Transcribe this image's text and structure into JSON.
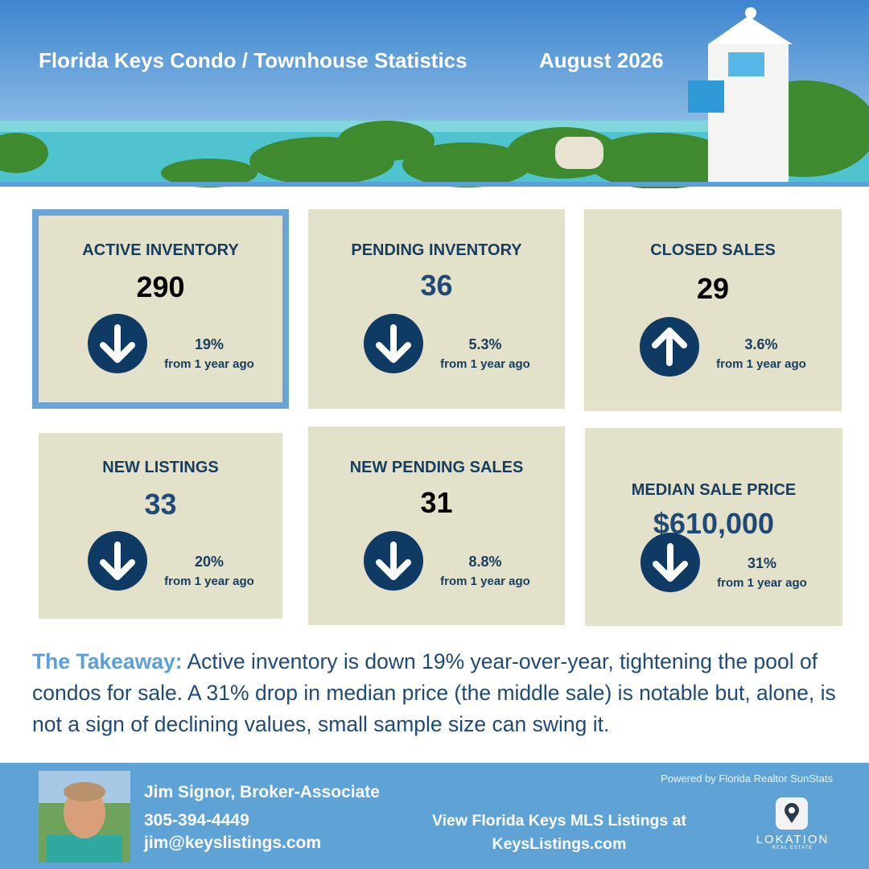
{
  "header": {
    "title": "Florida Keys Condo / Townhouse Statistics",
    "date": "August 2026"
  },
  "cards": [
    {
      "label": "ACTIVE INVENTORY",
      "value": "290",
      "change": "19%",
      "comparison": "from 1 year ago"
    },
    {
      "label": "PENDING INVENTORY",
      "value": "36",
      "change": "5.3%",
      "comparison": "from 1 year ago"
    },
    {
      "label": "CLOSED SALES",
      "value": "29",
      "change": "3.6%",
      "comparison": "from 1 year ago"
    },
    {
      "label": "NEW LISTINGS",
      "value": "33",
      "change": "20%",
      "comparison": "from 1 year ago"
    },
    {
      "label": "NEW PENDING SALES",
      "value": "31",
      "change": "8.8%",
      "comparison": "from 1 year ago"
    },
    {
      "label": "MEDIAN SALE PRICE",
      "value": "$610,000",
      "change": "31%",
      "comparison": "from 1 year ago"
    }
  ],
  "takeaway": {
    "label": "The Takeaway:",
    "text": "Active inventory is down 19% year-over-year, tightening the pool of condos for sale. A 31% drop in median price (the middle sale) is notable but, alone, is not a sign of declining values, small sample size can swing it."
  },
  "footer": {
    "name": "Jim Signor, Broker-Associate",
    "phone": "305-394-4449",
    "email": "jim@keyslistings.com",
    "cta": "View Florida Keys MLS Listings at",
    "website": "KeysListings.com",
    "credit": "Powered by Florida Realtor SunStats",
    "logo": "LOKATION",
    "logo_sub": "REAL ESTATE"
  }
}
